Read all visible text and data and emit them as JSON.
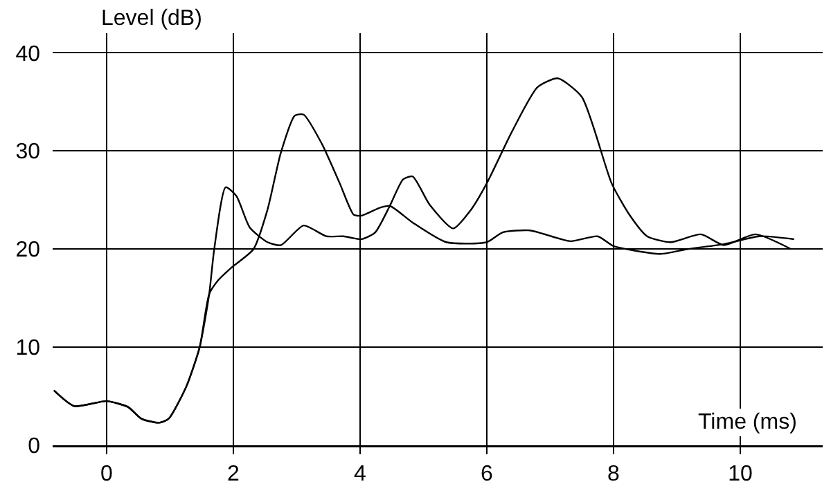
{
  "chart_data": {
    "type": "line",
    "xlabel": "Time (ms)",
    "ylabel": "Level (dB)",
    "xlim": [
      -0.85,
      11.3
    ],
    "ylim": [
      0,
      42
    ],
    "xticks": [
      0,
      2,
      4,
      6,
      8,
      10
    ],
    "yticks": [
      0,
      10,
      20,
      30,
      40
    ],
    "grid": true,
    "marker": "none",
    "line_style": "solid",
    "series": [
      {
        "color": "#000000",
        "x": [
          -0.83,
          -0.51,
          0,
          0.34,
          0.55,
          0.83,
          0.98,
          1.26,
          1.47,
          1.62,
          1.7,
          1.88,
          2.05,
          2.26,
          2.54,
          2.75,
          3.11,
          3.47,
          3.74,
          4.02,
          4.24,
          4.47,
          4.68,
          4.83,
          5.1,
          5.47,
          5.75,
          6.0,
          6.4,
          6.8,
          7.12,
          7.5,
          7.97,
          8.25,
          8.53,
          8.9,
          9.38,
          9.74,
          10.24,
          10.8
        ],
        "values": [
          5.6,
          4.0,
          4.5,
          3.9,
          2.7,
          2.3,
          2.7,
          6,
          10,
          15.4,
          20,
          26.3,
          25.4,
          22.2,
          20.7,
          20.4,
          22.4,
          21.3,
          21.3,
          21,
          21.7,
          24.4,
          27.1,
          27.4,
          24.5,
          22.1,
          24,
          26.7,
          32,
          36.5,
          37.4,
          35.5,
          26.7,
          23.5,
          21.3,
          20.7,
          21.5,
          20.4,
          21.5,
          20
        ]
      },
      {
        "color": "#000000",
        "x": [
          -0.83,
          -0.51,
          0,
          0.34,
          0.55,
          0.83,
          0.98,
          1.26,
          1.47,
          1.62,
          1.76,
          1.97,
          2.32,
          2.54,
          2.75,
          2.97,
          3.11,
          3.4,
          3.68,
          3.9,
          4.02,
          4.31,
          4.47,
          4.83,
          5.36,
          6.0,
          6.25,
          6.68,
          7.32,
          7.75,
          8.0,
          8.74,
          9.17,
          9.74,
          10.3,
          10.85
        ],
        "values": [
          5.6,
          4.0,
          4.5,
          3.9,
          2.7,
          2.3,
          2.7,
          6,
          10,
          15.4,
          16.8,
          18.1,
          20,
          24,
          29.8,
          33.6,
          33.7,
          30.7,
          26.7,
          23.5,
          23.4,
          24.2,
          24.4,
          22.7,
          20.7,
          20.7,
          21.7,
          21.9,
          20.8,
          21.3,
          20.3,
          19.5,
          20,
          20.5,
          21.3,
          21
        ]
      }
    ]
  }
}
